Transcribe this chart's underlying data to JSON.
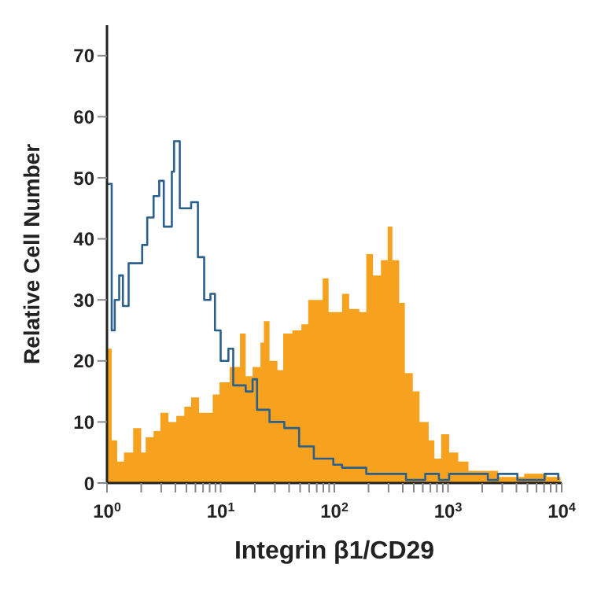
{
  "chart_data": {
    "type": "area",
    "xlabel": "Integrin β1/CD29",
    "ylabel": "Relative Cell Number",
    "log": "x",
    "xlim": [
      1,
      10000
    ],
    "ylim": [
      0,
      75
    ],
    "xticks": [
      {
        "value": 1,
        "label": "10$^{0}$"
      },
      {
        "value": 2,
        "label": null
      },
      {
        "value": 3,
        "label": null
      },
      {
        "value": 4,
        "label": null
      },
      {
        "value": 5,
        "label": null
      },
      {
        "value": 6,
        "label": null
      },
      {
        "value": 7,
        "label": null
      },
      {
        "value": 8,
        "label": null
      },
      {
        "value": 9,
        "label": null
      },
      {
        "value": 10,
        "label": "10$^{1}$"
      },
      {
        "value": 20,
        "label": null
      },
      {
        "value": 30,
        "label": null
      },
      {
        "value": 40,
        "label": null
      },
      {
        "value": 50,
        "label": null
      },
      {
        "value": 60,
        "label": null
      },
      {
        "value": 70,
        "label": null
      },
      {
        "value": 80,
        "label": null
      },
      {
        "value": 90,
        "label": null
      },
      {
        "value": 100,
        "label": "10$^{2}$"
      },
      {
        "value": 200,
        "label": null
      },
      {
        "value": 300,
        "label": null
      },
      {
        "value": 400,
        "label": null
      },
      {
        "value": 500,
        "label": null
      },
      {
        "value": 600,
        "label": null
      },
      {
        "value": 700,
        "label": null
      },
      {
        "value": 800,
        "label": null
      },
      {
        "value": 900,
        "label": null
      },
      {
        "value": 1000,
        "label": "10$^{3}$"
      },
      {
        "value": 2000,
        "label": null
      },
      {
        "value": 3000,
        "label": null
      },
      {
        "value": 4000,
        "label": null
      },
      {
        "value": 5000,
        "label": null
      },
      {
        "value": 6000,
        "label": null
      },
      {
        "value": 7000,
        "label": null
      },
      {
        "value": 8000,
        "label": null
      },
      {
        "value": 9000,
        "label": null
      },
      {
        "value": 10000,
        "label": "10$^{4}$"
      }
    ],
    "yticks": [
      0,
      10,
      20,
      30,
      40,
      50,
      60,
      70
    ],
    "series": [
      {
        "color": "#f7a21f",
        "x": [
          1,
          1.1,
          1.23,
          1.41,
          1.7,
          2,
          2.19,
          2.57,
          2.95,
          3.47,
          4.07,
          4.79,
          5.5,
          6.46,
          7.41,
          8.51,
          9.77,
          12,
          14.8,
          16.6,
          19.1,
          22.4,
          24,
          26.9,
          31.6,
          35.5,
          42.7,
          51.3,
          58.9,
          66,
          79,
          89,
          117,
          135,
          166,
          191,
          219,
          257,
          295,
          324,
          372,
          417,
          490,
          562,
          676,
          759,
          871,
          1023,
          1230,
          1514,
          2042,
          2754,
          4677,
          7413,
          9772
        ],
        "values": [
          22,
          7,
          3.5,
          5,
          9,
          5,
          7.5,
          8.5,
          11.5,
          10,
          11,
          12.5,
          14,
          11.5,
          11.5,
          14.5,
          16.5,
          19,
          24.5,
          17.5,
          19,
          23,
          26.5,
          20,
          18.5,
          24.5,
          25,
          26,
          30,
          30,
          33.5,
          28,
          31,
          28.5,
          28,
          37.5,
          34,
          36.5,
          42,
          36.5,
          29.5,
          18,
          15,
          10,
          7,
          4,
          8,
          5,
          3.5,
          2,
          2,
          1,
          1.5,
          1,
          3
        ]
      },
      {
        "type": "step",
        "color": "#2b5f8c",
        "x": [
          1,
          1.1,
          1.17,
          1.28,
          1.38,
          1.55,
          1.82,
          2.04,
          2.26,
          2.57,
          2.88,
          3.16,
          3.72,
          3.89,
          4.37,
          5.07,
          5.5,
          6.31,
          7.16,
          8.13,
          8.91,
          10,
          11.7,
          12.9,
          16.6,
          19.1,
          20.9,
          26.9,
          36.3,
          49,
          66,
          98,
          117,
          191,
          427,
          631,
          832,
          1023,
          2239,
          2754,
          4074,
          7079,
          9333
        ],
        "values": [
          49,
          25,
          30,
          34,
          29,
          36,
          36,
          39,
          43.5,
          47,
          49.5,
          42,
          51,
          56,
          45,
          45,
          46,
          37,
          30,
          31,
          25,
          20,
          22,
          16,
          15,
          17,
          12,
          10,
          9,
          6,
          4,
          3,
          2.5,
          1.5,
          0.5,
          1.5,
          0.5,
          1.5,
          0.5,
          1.5,
          0.5,
          1.5,
          0.5
        ]
      }
    ]
  }
}
